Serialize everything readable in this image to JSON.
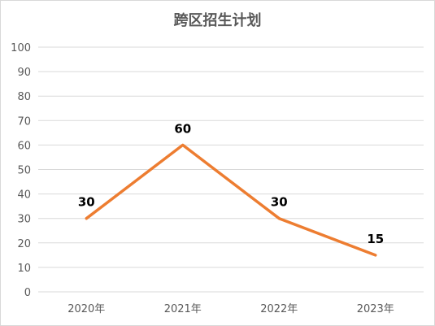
{
  "chart_data": {
    "type": "line",
    "title": "跨区招生计划",
    "categories": [
      "2020年",
      "2021年",
      "2022年",
      "2023年"
    ],
    "series": [
      {
        "values": [
          30,
          60,
          30,
          15
        ],
        "color": "#ed7d31"
      }
    ],
    "ylim": [
      0,
      100
    ],
    "yticks": [
      0,
      10,
      20,
      30,
      40,
      50,
      60,
      70,
      80,
      90,
      100
    ],
    "grid": true,
    "data_labels": [
      "30",
      "60",
      "30",
      "15"
    ]
  }
}
